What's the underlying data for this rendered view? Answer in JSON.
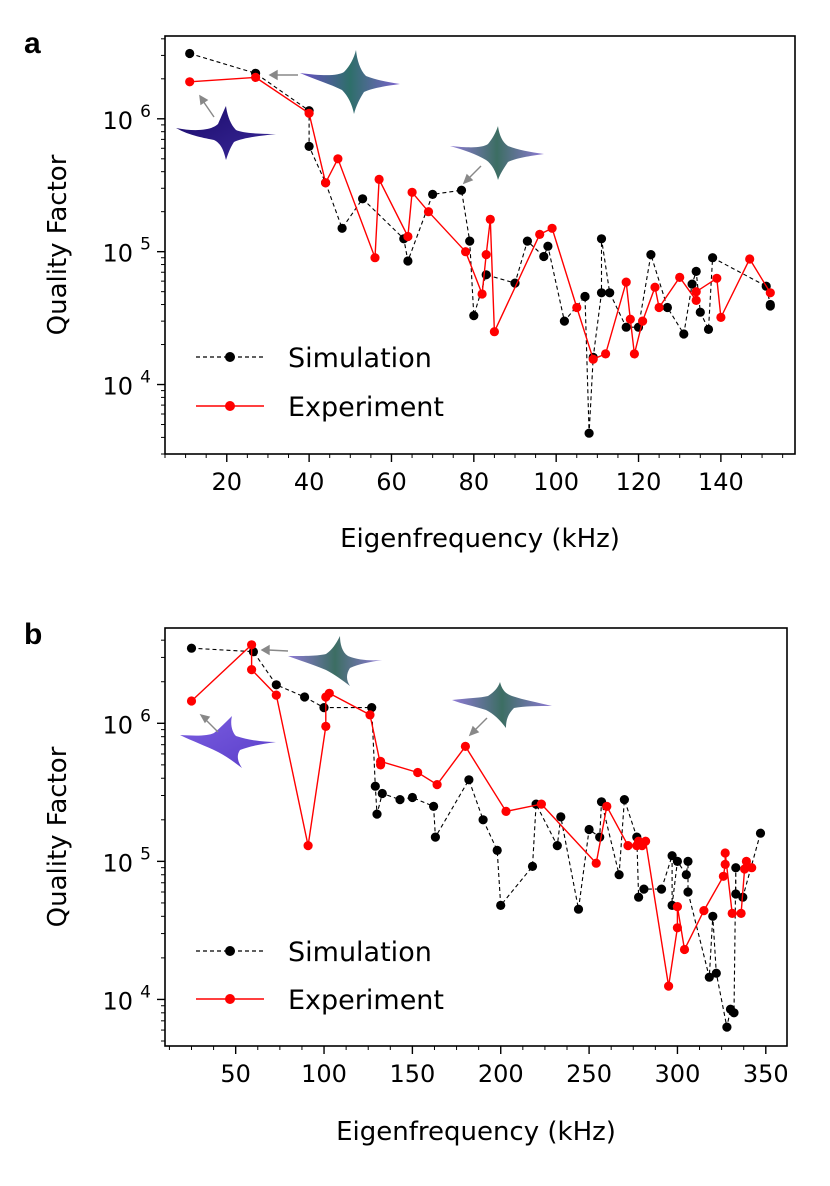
{
  "chart_data": [
    {
      "panel": "a",
      "type": "line",
      "xlabel": "Eigenfrequency (kHz)",
      "ylabel": "Quality Factor",
      "xlim": [
        5,
        158
      ],
      "ylim": [
        3000,
        4200000
      ],
      "yscale": "log",
      "xticks": [
        20,
        40,
        60,
        80,
        100,
        120,
        140
      ],
      "yticks": [
        {
          "value": 10000,
          "base": "10",
          "exp": "4"
        },
        {
          "value": 100000,
          "base": "10",
          "exp": "5"
        },
        {
          "value": 1000000,
          "base": "10",
          "exp": "6"
        }
      ],
      "legend": {
        "position": "lower-left",
        "entries": [
          "Simulation",
          "Experiment"
        ]
      },
      "series": [
        {
          "name": "Simulation",
          "color": "#000000",
          "style": "dashed",
          "points": [
            [
              11,
              3100000
            ],
            [
              27,
              2200000
            ],
            [
              40,
              1150000
            ],
            [
              40,
              620000
            ],
            [
              44,
              330000
            ],
            [
              48,
              150000
            ],
            [
              53,
              250000
            ],
            [
              63,
              125000
            ],
            [
              64,
              85000
            ],
            [
              70,
              270000
            ],
            [
              77,
              290000
            ],
            [
              79,
              120000
            ],
            [
              80,
              33000
            ],
            [
              83,
              67000
            ],
            [
              90,
              58000
            ],
            [
              93,
              120000
            ],
            [
              97,
              92000
            ],
            [
              98,
              110000
            ],
            [
              102,
              30000
            ],
            [
              107,
              46000
            ],
            [
              107,
              46000
            ],
            [
              108,
              4300
            ],
            [
              109,
              16000
            ],
            [
              111,
              49000
            ],
            [
              111,
              125000
            ],
            [
              113,
              49000
            ],
            [
              117,
              27000
            ],
            [
              120,
              27000
            ],
            [
              123,
              95000
            ],
            [
              127,
              38000
            ],
            [
              131,
              24000
            ],
            [
              133,
              57000
            ],
            [
              134,
              71000
            ],
            [
              135,
              35000
            ],
            [
              137,
              26000
            ],
            [
              138,
              90000
            ],
            [
              151,
              55000
            ],
            [
              152,
              40000
            ],
            [
              152,
              39000
            ]
          ]
        },
        {
          "name": "Experiment",
          "color": "#ff0000",
          "style": "solid",
          "points": [
            [
              11,
              1900000
            ],
            [
              27,
              2050000
            ],
            [
              40,
              1100000
            ],
            [
              44,
              330000
            ],
            [
              47,
              500000
            ],
            [
              56,
              90000
            ],
            [
              57,
              350000
            ],
            [
              64,
              130000
            ],
            [
              65,
              280000
            ],
            [
              69,
              200000
            ],
            [
              78,
              100000
            ],
            [
              82,
              48000
            ],
            [
              83,
              95000
            ],
            [
              84,
              175000
            ],
            [
              85,
              25000
            ],
            [
              96,
              135000
            ],
            [
              99,
              150000
            ],
            [
              105,
              38000
            ],
            [
              109,
              15500
            ],
            [
              112,
              17000
            ],
            [
              117,
              59000
            ],
            [
              118,
              31000
            ],
            [
              119,
              17000
            ],
            [
              121,
              30000
            ],
            [
              124,
              54000
            ],
            [
              125,
              38000
            ],
            [
              130,
              64000
            ],
            [
              134,
              43000
            ],
            [
              134,
              50000
            ],
            [
              139,
              63000
            ],
            [
              140,
              32000
            ],
            [
              147,
              88000
            ],
            [
              152,
              49000
            ]
          ]
        }
      ]
    },
    {
      "panel": "b",
      "type": "line",
      "xlabel": "Eigenfrequency (kHz)",
      "ylabel": "Quality Factor",
      "xlim": [
        10,
        362
      ],
      "ylim": [
        4600,
        4900000
      ],
      "yscale": "log",
      "xticks": [
        50,
        100,
        150,
        200,
        250,
        300,
        350
      ],
      "yticks": [
        {
          "value": 10000,
          "base": "10",
          "exp": "4"
        },
        {
          "value": 100000,
          "base": "10",
          "exp": "5"
        },
        {
          "value": 1000000,
          "base": "10",
          "exp": "6"
        }
      ],
      "legend": {
        "position": "lower-left",
        "entries": [
          "Simulation",
          "Experiment"
        ]
      },
      "series": [
        {
          "name": "Simulation",
          "color": "#000000",
          "style": "dashed",
          "points": [
            [
              25,
              3500000
            ],
            [
              60,
              3300000
            ],
            [
              73,
              1900000
            ],
            [
              89,
              1550000
            ],
            [
              100,
              1300000
            ],
            [
              127,
              1300000
            ],
            [
              129,
              350000
            ],
            [
              130,
              220000
            ],
            [
              133,
              310000
            ],
            [
              143,
              280000
            ],
            [
              150,
              290000
            ],
            [
              162,
              250000
            ],
            [
              163,
              150000
            ],
            [
              182,
              390000
            ],
            [
              190,
              200000
            ],
            [
              198,
              120000
            ],
            [
              200,
              48000
            ],
            [
              218,
              92000
            ],
            [
              220,
              260000
            ],
            [
              232,
              130000
            ],
            [
              234,
              210000
            ],
            [
              244,
              45000
            ],
            [
              250,
              170000
            ],
            [
              256,
              150000
            ],
            [
              257,
              270000
            ],
            [
              267,
              80000
            ],
            [
              270,
              280000
            ],
            [
              277,
              150000
            ],
            [
              278,
              55000
            ],
            [
              281,
              63000
            ],
            [
              291,
              63000
            ],
            [
              297,
              110000
            ],
            [
              297,
              48000
            ],
            [
              300,
              100000
            ],
            [
              305,
              80000
            ],
            [
              306,
              100000
            ],
            [
              306,
              60000
            ],
            [
              318,
              14500
            ],
            [
              320,
              40000
            ],
            [
              322,
              15500
            ],
            [
              328,
              6300
            ],
            [
              330,
              8500
            ],
            [
              332,
              8000
            ],
            [
              333,
              90000
            ],
            [
              333,
              58000
            ],
            [
              337,
              55000
            ],
            [
              347,
              160000
            ]
          ]
        },
        {
          "name": "Experiment",
          "color": "#ff0000",
          "style": "solid",
          "points": [
            [
              25,
              1450000
            ],
            [
              59,
              3700000
            ],
            [
              59,
              2450000
            ],
            [
              73,
              1600000
            ],
            [
              91,
              130000
            ],
            [
              101,
              950000
            ],
            [
              101,
              1550000
            ],
            [
              103,
              1650000
            ],
            [
              126,
              1150000
            ],
            [
              132,
              500000
            ],
            [
              132,
              530000
            ],
            [
              153,
              440000
            ],
            [
              164,
              360000
            ],
            [
              180,
              680000
            ],
            [
              203,
              230000
            ],
            [
              223,
              260000
            ],
            [
              254,
              97000
            ],
            [
              260,
              250000
            ],
            [
              272,
              130000
            ],
            [
              277,
              130000
            ],
            [
              278,
              140000
            ],
            [
              280,
              130000
            ],
            [
              282,
              140000
            ],
            [
              295,
              12500
            ],
            [
              300,
              33000
            ],
            [
              300,
              47000
            ],
            [
              304,
              23000
            ],
            [
              315,
              44000
            ],
            [
              326,
              78000
            ],
            [
              327,
              95000
            ],
            [
              327,
              115000
            ],
            [
              331,
              42000
            ],
            [
              336,
              42000
            ],
            [
              338,
              88000
            ],
            [
              339,
              100000
            ],
            [
              342,
              90000
            ]
          ]
        }
      ]
    }
  ]
}
